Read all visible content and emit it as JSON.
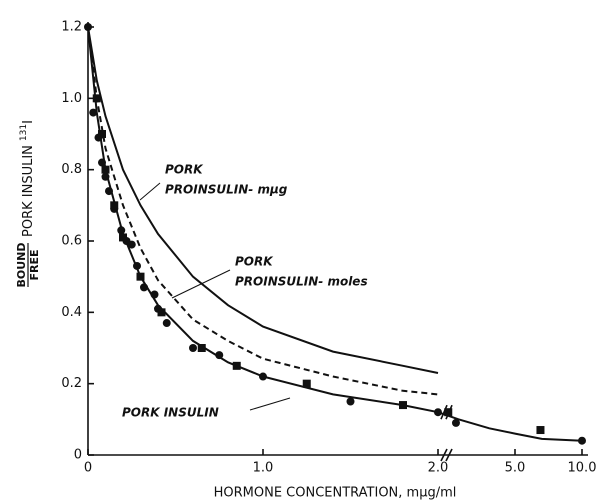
{
  "chart_data": {
    "type": "line",
    "xlabel": "HORMONE CONCENTRATION, mμg/ml",
    "ylabel": {
      "numerator": "BOUND",
      "denominator": "FREE",
      "text": "PORK INSULIN",
      "superscript": "131",
      "suffix": "I"
    },
    "xlim": [
      0,
      10
    ],
    "xticks": [
      0,
      {
        "value": 1,
        "label": "1.0"
      },
      {
        "value": 2,
        "label": "2.0"
      },
      {
        "value": 5,
        "label": "5.0"
      },
      {
        "value": 10,
        "label": "10.0"
      }
    ],
    "ylim": [
      0,
      1.2
    ],
    "yticks": [
      0,
      0.2,
      0.4,
      0.6,
      0.8,
      {
        "value": 1,
        "label": "1.0"
      },
      1.2
    ],
    "axis_break": true,
    "curves": [
      {
        "label": [
          "PORK",
          "PROINSULIN- mμg"
        ],
        "style": "solid",
        "x": [
          0,
          0.05,
          0.1,
          0.2,
          0.3,
          0.4,
          0.6,
          0.8,
          1.0,
          1.4,
          1.8,
          2.0
        ],
        "y": [
          1.2,
          1.05,
          0.95,
          0.8,
          0.7,
          0.62,
          0.5,
          0.42,
          0.36,
          0.29,
          0.25,
          0.23
        ]
      },
      {
        "label": [
          "PORK",
          "PROINSULIN- moles"
        ],
        "style": "dashed",
        "x": [
          0,
          0.05,
          0.1,
          0.2,
          0.3,
          0.4,
          0.6,
          0.8,
          1.0,
          1.4,
          1.8,
          2.0
        ],
        "y": [
          1.2,
          1.0,
          0.86,
          0.7,
          0.58,
          0.49,
          0.38,
          0.32,
          0.27,
          0.22,
          0.18,
          0.17
        ]
      },
      {
        "label": [
          "PORK INSULIN"
        ],
        "style": "solid",
        "x": [
          0,
          0.05,
          0.1,
          0.2,
          0.3,
          0.4,
          0.6,
          0.8,
          1.0,
          1.4,
          1.8,
          2.0,
          2.8,
          4,
          5,
          7,
          10
        ],
        "y": [
          1.2,
          0.96,
          0.8,
          0.62,
          0.5,
          0.42,
          0.32,
          0.26,
          0.22,
          0.17,
          0.14,
          0.12,
          0.1,
          0.075,
          0.06,
          0.045,
          0.04
        ]
      }
    ],
    "points": [
      {
        "marker": "circle",
        "x": [
          0,
          0.03,
          0.06,
          0.08,
          0.1,
          0.12,
          0.15,
          0.19,
          0.22,
          0.25,
          0.28,
          0.32,
          0.38,
          0.4,
          0.45,
          0.6,
          0.75,
          1.0,
          1.5,
          2.0,
          2.7,
          10
        ],
        "y": [
          1.2,
          0.96,
          0.89,
          0.82,
          0.78,
          0.74,
          0.69,
          0.63,
          0.6,
          0.59,
          0.53,
          0.47,
          0.45,
          0.41,
          0.37,
          0.3,
          0.28,
          0.22,
          0.15,
          0.12,
          0.09,
          0.04
        ]
      },
      {
        "marker": "square",
        "x": [
          0.05,
          0.08,
          0.1,
          0.15,
          0.2,
          0.3,
          0.42,
          0.65,
          0.85,
          1.25,
          1.8,
          2.4,
          6.9
        ],
        "y": [
          1.0,
          0.9,
          0.8,
          0.7,
          0.61,
          0.5,
          0.4,
          0.3,
          0.25,
          0.2,
          0.14,
          0.12,
          0.07
        ]
      }
    ]
  }
}
